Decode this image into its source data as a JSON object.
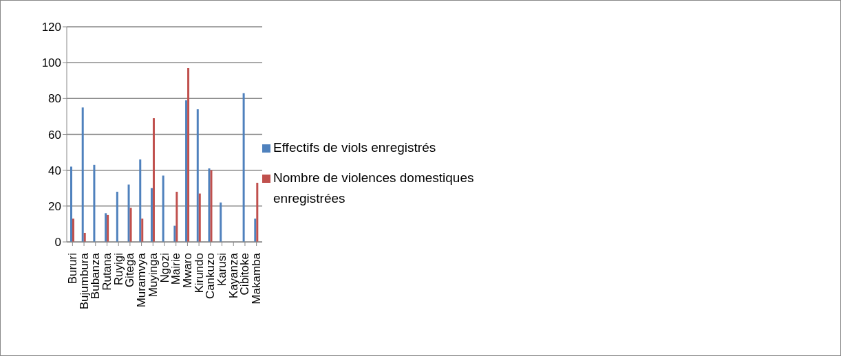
{
  "chart_data": {
    "type": "bar",
    "categories": [
      "Bururi",
      "Bujumbura",
      "Bubanza",
      "Rutana",
      "Ruyigi",
      "Gitega",
      "Muramvya",
      "Muyinga",
      "Ngozi",
      "Mairie",
      "Mwaro",
      "Kirundo",
      "Cankuzo",
      "Karusi",
      "Kayanza",
      "Cibitoke",
      "Makamba"
    ],
    "series": [
      {
        "name": "Effectifs de viols enregistrés",
        "color": "#4f81bd",
        "values": [
          42,
          75,
          43,
          16,
          28,
          32,
          46,
          30,
          37,
          9,
          79,
          74,
          41,
          22,
          null,
          83,
          13
        ]
      },
      {
        "name": "Nombre de violences domestiques enregistrées",
        "color": "#c0504d",
        "values": [
          13,
          5,
          null,
          15,
          null,
          19,
          13,
          69,
          null,
          28,
          97,
          27,
          40,
          null,
          null,
          null,
          33
        ]
      }
    ],
    "ylim": [
      0,
      120
    ],
    "yticks": [
      0,
      20,
      40,
      60,
      80,
      100,
      120
    ],
    "grid": "y",
    "legend": "right"
  }
}
